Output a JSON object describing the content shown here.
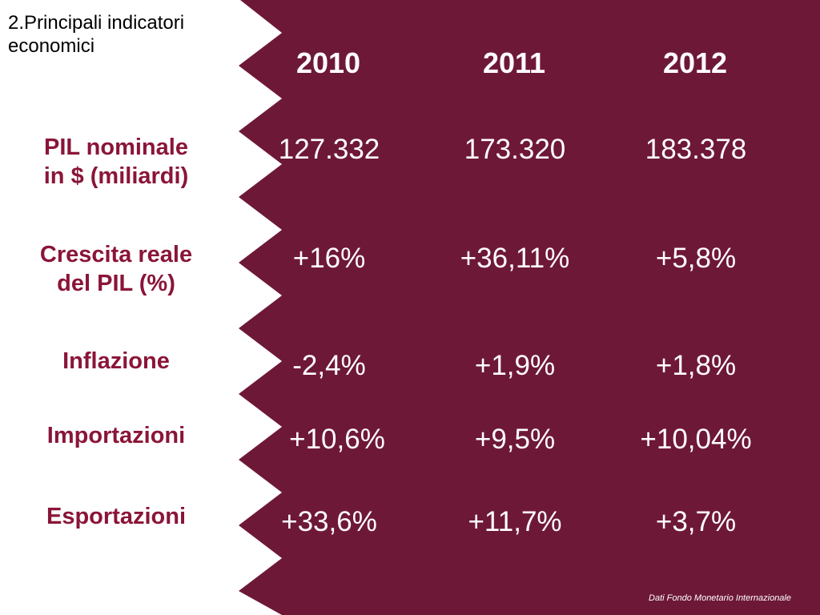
{
  "title": "2.Principali indicatori economici",
  "colors": {
    "panel": "#6e1838",
    "label": "#8a1538",
    "value": "#ffffff"
  },
  "years": [
    "2010",
    "2011",
    "2012"
  ],
  "rows": [
    {
      "label_line1": "PIL nominale",
      "label_line2": "in $ (miliardi)",
      "values": [
        "127.332",
        "173.320",
        "183.378"
      ]
    },
    {
      "label_line1": "Crescita reale",
      "label_line2": "del PIL (%)",
      "values": [
        "+16%",
        "+36,11%",
        "+5,8%"
      ]
    },
    {
      "label_line1": "Inflazione",
      "label_line2": "",
      "values": [
        "-2,4%",
        "+1,9%",
        "+1,8%"
      ]
    },
    {
      "label_line1": "Importazioni",
      "label_line2": "",
      "values": [
        "+10,6%",
        "+9,5%",
        "+10,04%"
      ]
    },
    {
      "label_line1": "Esportazioni",
      "label_line2": "",
      "values": [
        "+33,6%",
        "+11,7%",
        "+3,7%"
      ]
    }
  ],
  "source": "Dati Fondo Monetario Internazionale"
}
